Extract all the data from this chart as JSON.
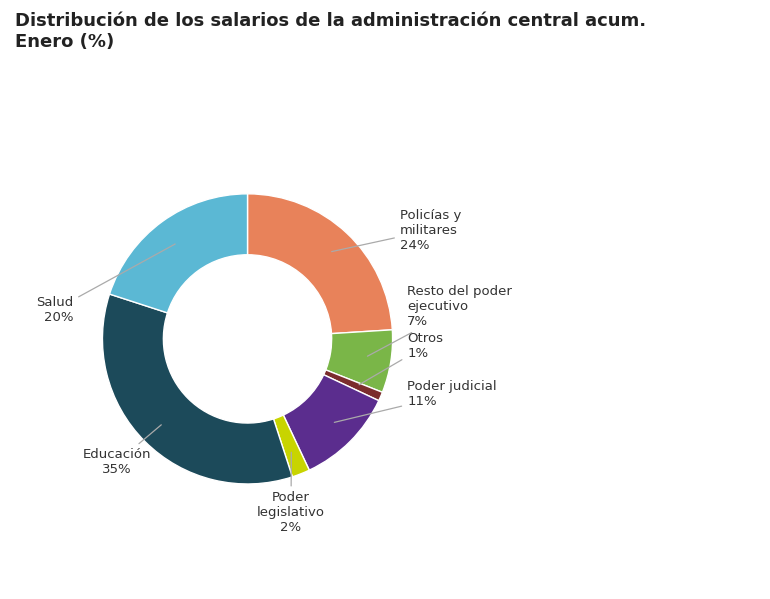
{
  "title": "Distribución de los salarios de la administración central acum.\nEnero (%)",
  "slices": [
    {
      "label": "Policías y\nmilitares\n24%",
      "value": 24,
      "color": "#E8825A"
    },
    {
      "label": "Resto del poder\nejecutivo\n7%",
      "value": 7,
      "color": "#7AB648"
    },
    {
      "label": "Otros\n1%",
      "value": 1,
      "color": "#7B2D2D"
    },
    {
      "label": "Poder judicial\n11%",
      "value": 11,
      "color": "#5B2D8E"
    },
    {
      "label": "Poder\nlegislativo\n2%",
      "value": 2,
      "color": "#C8D400"
    },
    {
      "label": "Educación\n35%",
      "value": 35,
      "color": "#1C4A5A"
    },
    {
      "label": "Salud\n20%",
      "value": 20,
      "color": "#5BB8D4"
    }
  ],
  "background_color": "#FFFFFF",
  "title_fontsize": 13,
  "label_fontsize": 9.5,
  "wedge_linewidth": 1.0,
  "wedge_edgecolor": "#FFFFFF",
  "label_color": "#333333",
  "line_color": "#AAAAAA"
}
